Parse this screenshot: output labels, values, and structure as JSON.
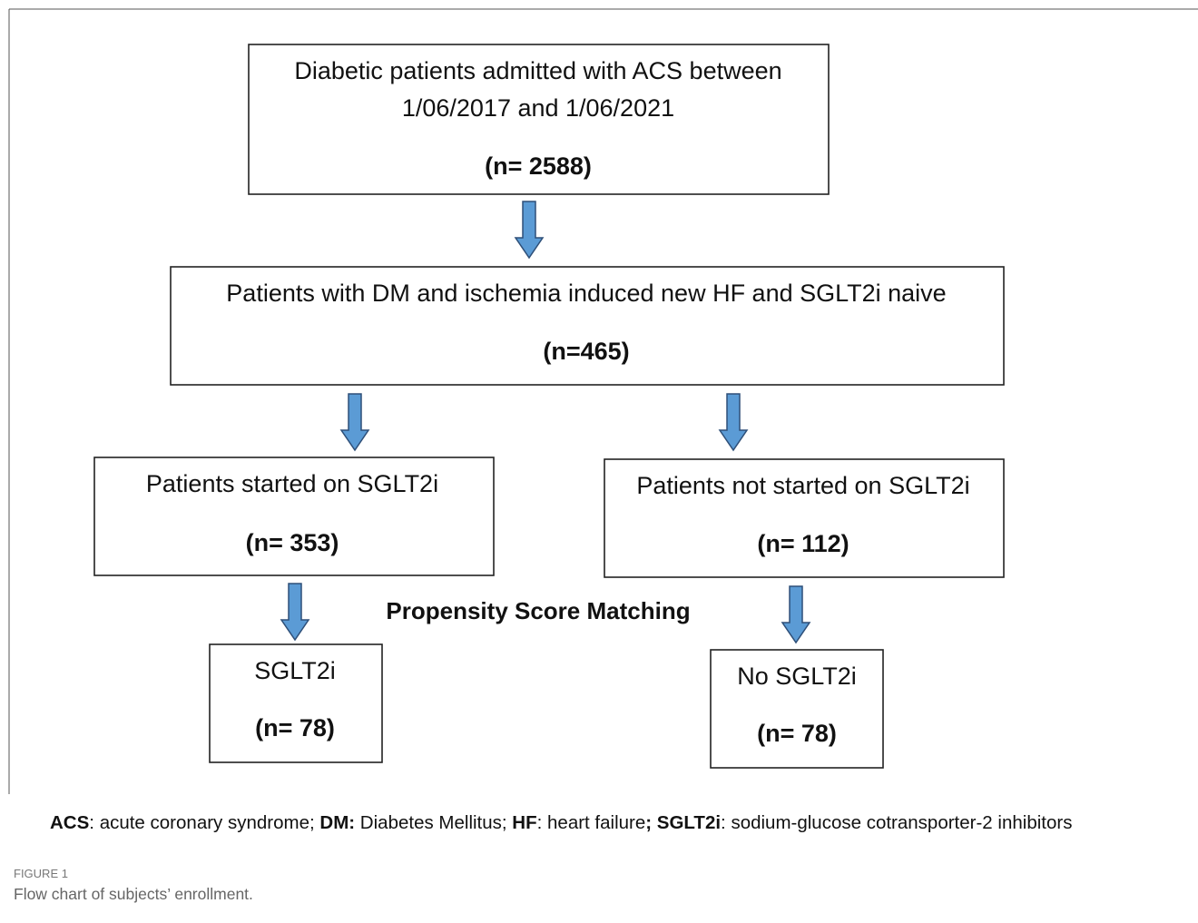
{
  "nodes": [
    {
      "lines": [
        "Diabetic patients admitted with ACS between",
        "1/06/2017 and 1/06/2021"
      ],
      "count": "(n= 2588)"
    },
    {
      "lines": [
        "Patients with DM and ischemia induced new HF and SGLT2i naive"
      ],
      "count": "(n=465)"
    },
    {
      "lines": [
        "Patients started on SGLT2i"
      ],
      "count": "(n= 353)"
    },
    {
      "lines": [
        "Patients not started on SGLT2i"
      ],
      "count": "(n= 112)"
    },
    {
      "lines": [
        "SGLT2i"
      ],
      "count": "(n= 78)"
    },
    {
      "lines": [
        "No SGLT2i"
      ],
      "count": "(n= 78)"
    }
  ],
  "annotation": "Propensity Score Matching",
  "footnote": [
    "ACS",
    ": acute coronary syndrome; ",
    "DM:",
    " Diabetes Mellitus; ",
    "HF",
    ": heart failure",
    "; SGLT2i",
    ": sodium-glucose cotransporter-2 inhibitors"
  ],
  "caption": {
    "label": "FIGURE 1",
    "text": "Flow chart of subjects’ enrollment."
  }
}
